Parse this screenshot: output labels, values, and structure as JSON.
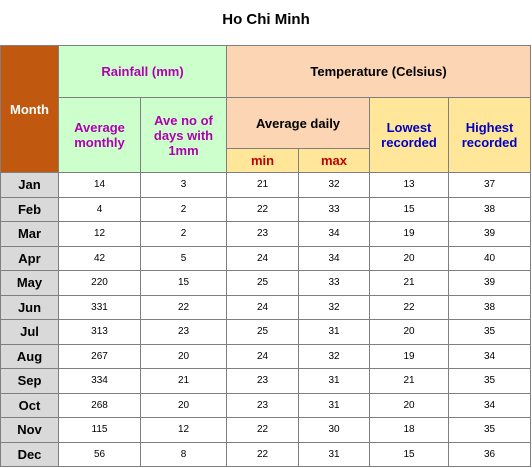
{
  "title": "Ho Chi Minh",
  "headers": {
    "month": "Month",
    "rainfall": "Rainfall (mm)",
    "temperature": "Temperature (Celsius)",
    "avg_monthly": "Average monthly",
    "ave_days": "Ave no of days with 1mm",
    "avg_daily": "Average daily",
    "lowest": "Lowest recorded",
    "highest": "Highest recorded",
    "min": "min",
    "max": "max"
  },
  "rows": [
    {
      "month": "Jan",
      "rain": "14",
      "days": "3",
      "min": "21",
      "max": "32",
      "low": "13",
      "high": "37"
    },
    {
      "month": "Feb",
      "rain": "4",
      "days": "2",
      "min": "22",
      "max": "33",
      "low": "15",
      "high": "38"
    },
    {
      "month": "Mar",
      "rain": "12",
      "days": "2",
      "min": "23",
      "max": "34",
      "low": "19",
      "high": "39"
    },
    {
      "month": "Apr",
      "rain": "42",
      "days": "5",
      "min": "24",
      "max": "34",
      "low": "20",
      "high": "40"
    },
    {
      "month": "May",
      "rain": "220",
      "days": "15",
      "min": "25",
      "max": "33",
      "low": "21",
      "high": "39"
    },
    {
      "month": "Jun",
      "rain": "331",
      "days": "22",
      "min": "24",
      "max": "32",
      "low": "22",
      "high": "38"
    },
    {
      "month": "Jul",
      "rain": "313",
      "days": "23",
      "min": "25",
      "max": "31",
      "low": "20",
      "high": "35"
    },
    {
      "month": "Aug",
      "rain": "267",
      "days": "20",
      "min": "24",
      "max": "32",
      "low": "19",
      "high": "34"
    },
    {
      "month": "Sep",
      "rain": "334",
      "days": "21",
      "min": "23",
      "max": "31",
      "low": "21",
      "high": "35"
    },
    {
      "month": "Oct",
      "rain": "268",
      "days": "20",
      "min": "23",
      "max": "31",
      "low": "20",
      "high": "34"
    },
    {
      "month": "Nov",
      "rain": "115",
      "days": "12",
      "min": "22",
      "max": "30",
      "low": "18",
      "high": "35"
    },
    {
      "month": "Dec",
      "rain": "56",
      "days": "8",
      "min": "22",
      "max": "31",
      "low": "15",
      "high": "36"
    }
  ]
}
